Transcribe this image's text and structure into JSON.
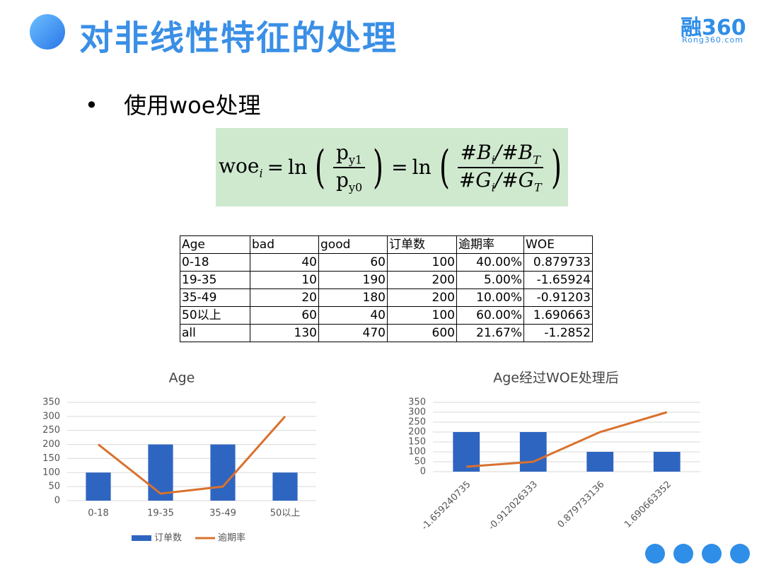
{
  "header": {
    "title": "对非线性特征的处理",
    "logo": "融360",
    "logo_sub": "Rong360.com"
  },
  "bullet": "使用woe处理",
  "formula": {
    "lhs": "woe",
    "lhs_sub": "i",
    "eq": "=",
    "ln": "ln",
    "p": "p",
    "y1": "y1",
    "y0": "y0",
    "num2": [
      "#B",
      "i",
      "/#B",
      "T"
    ],
    "den2": [
      "#G",
      "i",
      "/#G",
      "T"
    ]
  },
  "table": {
    "rows": [
      [
        "Age",
        "bad",
        "good",
        "订单数",
        "逾期率",
        "WOE"
      ],
      [
        "0-18",
        "40",
        "60",
        "100",
        "40.00%",
        "0.879733"
      ],
      [
        "19-35",
        "10",
        "190",
        "200",
        "5.00%",
        "-1.65924"
      ],
      [
        "35-49",
        "20",
        "180",
        "200",
        "10.00%",
        "-0.91203"
      ],
      [
        "50以上",
        "60",
        "40",
        "100",
        "60.00%",
        "1.690663"
      ],
      [
        "all",
        "130",
        "470",
        "600",
        "21.67%",
        "-1.2852"
      ]
    ]
  },
  "chart_data": [
    {
      "type": "bar",
      "title": "Age",
      "categories": [
        "0-18",
        "19-35",
        "35-49",
        "50以上"
      ],
      "series": [
        {
          "name": "订单数",
          "type": "bar",
          "color": "#2e65c0",
          "values": [
            100,
            200,
            200,
            100
          ]
        },
        {
          "name": "逾期率",
          "type": "line",
          "color": "#d9712f",
          "values": [
            200,
            25,
            50,
            300
          ]
        }
      ],
      "ylim": [
        0,
        350
      ],
      "yticks": [
        0,
        50,
        100,
        150,
        200,
        250,
        300,
        350
      ],
      "grid": true,
      "legend": "bottom"
    },
    {
      "type": "bar",
      "title": "Age经过WOE处理后",
      "categories": [
        "-1.659240735",
        "-0.912026333",
        "0.879733136",
        "1.690663352"
      ],
      "series": [
        {
          "type": "bar",
          "color": "#2e65c0",
          "values": [
            200,
            200,
            100,
            100
          ]
        },
        {
          "type": "line",
          "color": "#d9712f",
          "values": [
            25,
            50,
            200,
            300
          ]
        }
      ],
      "ylim": [
        0,
        350
      ],
      "yticks": [
        0,
        50,
        100,
        150,
        200,
        250,
        300,
        350
      ],
      "grid": true
    }
  ]
}
